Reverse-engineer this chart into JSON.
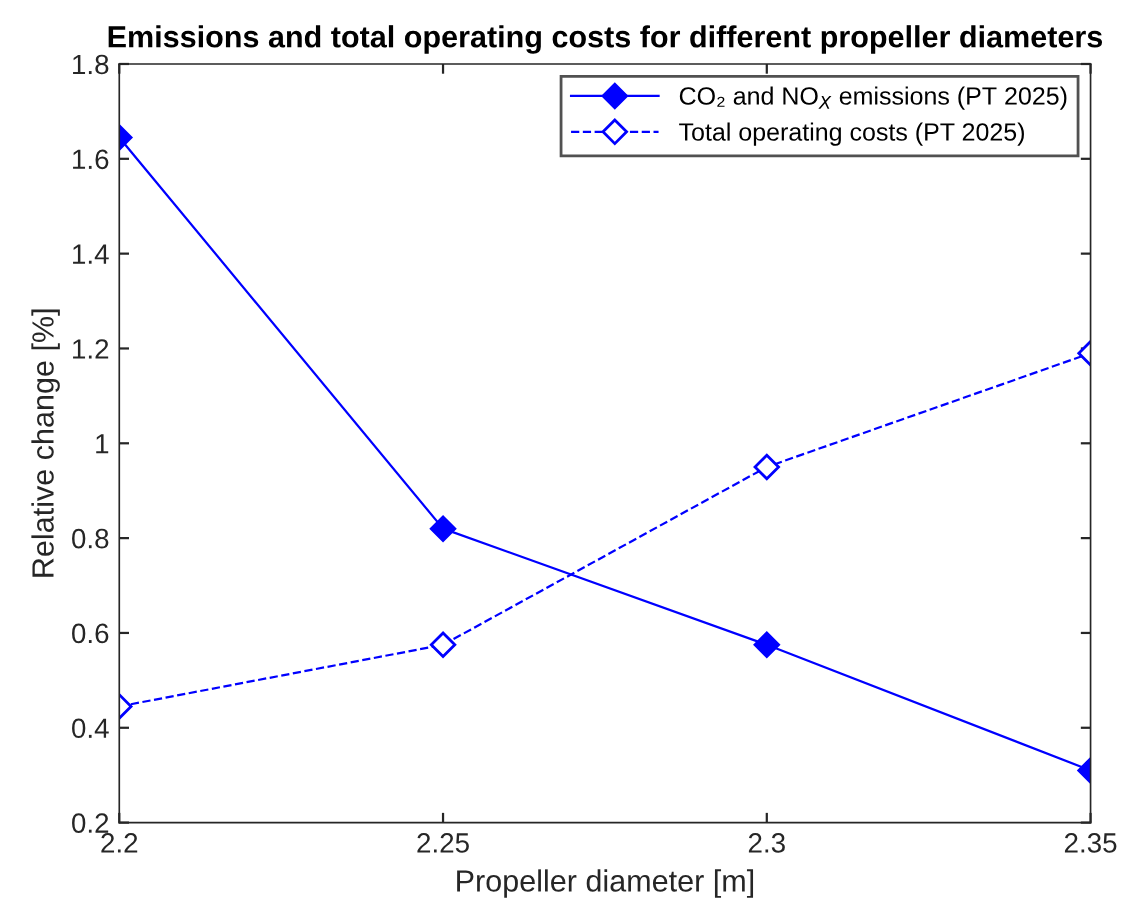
{
  "chart_data": {
    "type": "line",
    "title": "Emissions and total operating costs for different propeller diameters",
    "xlabel": "Propeller diameter [m]",
    "ylabel": "Relative change [%]",
    "x": [
      2.2,
      2.25,
      2.3,
      2.35
    ],
    "series": [
      {
        "name": "CO₂ and NO$_{X}$ emissions (PT 2025)",
        "color": "#0000ff",
        "values": [
          1.645,
          0.82,
          0.575,
          0.31
        ],
        "marker": "diamond",
        "line_style": "solid"
      },
      {
        "name": "Total operating costs (PT 2025)",
        "color": "#0000ff",
        "values": [
          0.445,
          0.575,
          0.95,
          1.19
        ],
        "marker": "diamond",
        "line_style": "dashed"
      }
    ],
    "xlim": [
      2.2,
      2.35
    ],
    "xticks": [
      2.2,
      2.25,
      2.3,
      2.35
    ],
    "ylim": [
      0.2,
      1.8
    ],
    "yticks": [
      0.2,
      0.4,
      0.6,
      0.8,
      1,
      1.2,
      1.4,
      1.6,
      1.8
    ],
    "grid": false,
    "legend": "top right"
  }
}
